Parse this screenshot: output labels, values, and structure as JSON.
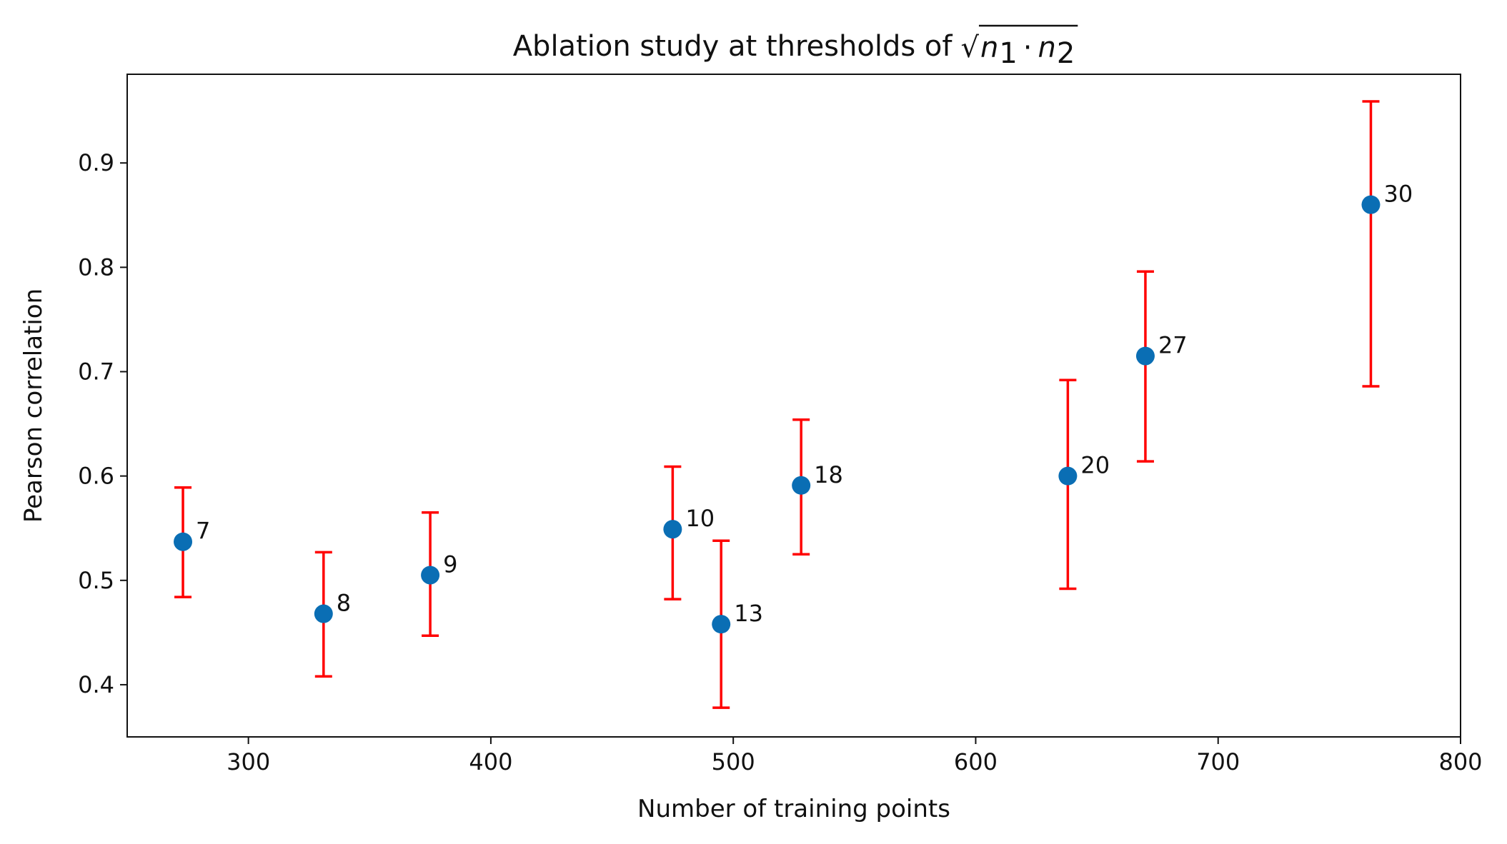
{
  "chart_data": {
    "type": "scatter",
    "title": "Ablation study at thresholds of",
    "title_math": {
      "radical": "√",
      "n1": "n",
      "sub1": "1",
      "dot": "·",
      "n2": "n",
      "sub2": "2"
    },
    "xlabel": "Number of training points",
    "ylabel": "Pearson correlation",
    "xlim": [
      250,
      800
    ],
    "ylim": [
      0.35,
      0.985
    ],
    "xticks": [
      300,
      400,
      500,
      600,
      700,
      800
    ],
    "xtick_labels": [
      "300",
      "400",
      "500",
      "600",
      "700",
      "800"
    ],
    "yticks": [
      0.4,
      0.5,
      0.6,
      0.7,
      0.8,
      0.9
    ],
    "ytick_labels": [
      "0.4",
      "0.5",
      "0.6",
      "0.7",
      "0.8",
      "0.9"
    ],
    "grid": false,
    "colors": {
      "point": "#0a6eb4",
      "errorbar": "#ff0000"
    },
    "points": [
      {
        "x": 273,
        "y": 0.537,
        "lower": 0.484,
        "upper": 0.589,
        "label": "7"
      },
      {
        "x": 331,
        "y": 0.468,
        "lower": 0.408,
        "upper": 0.527,
        "label": "8"
      },
      {
        "x": 375,
        "y": 0.505,
        "lower": 0.447,
        "upper": 0.565,
        "label": "9"
      },
      {
        "x": 475,
        "y": 0.549,
        "lower": 0.482,
        "upper": 0.609,
        "label": "10"
      },
      {
        "x": 495,
        "y": 0.458,
        "lower": 0.378,
        "upper": 0.538,
        "label": "13"
      },
      {
        "x": 528,
        "y": 0.591,
        "lower": 0.525,
        "upper": 0.654,
        "label": "18"
      },
      {
        "x": 638,
        "y": 0.6,
        "lower": 0.492,
        "upper": 0.692,
        "label": "20"
      },
      {
        "x": 670,
        "y": 0.715,
        "lower": 0.614,
        "upper": 0.796,
        "label": "27"
      },
      {
        "x": 763,
        "y": 0.86,
        "lower": 0.686,
        "upper": 0.959,
        "label": "30"
      }
    ]
  }
}
